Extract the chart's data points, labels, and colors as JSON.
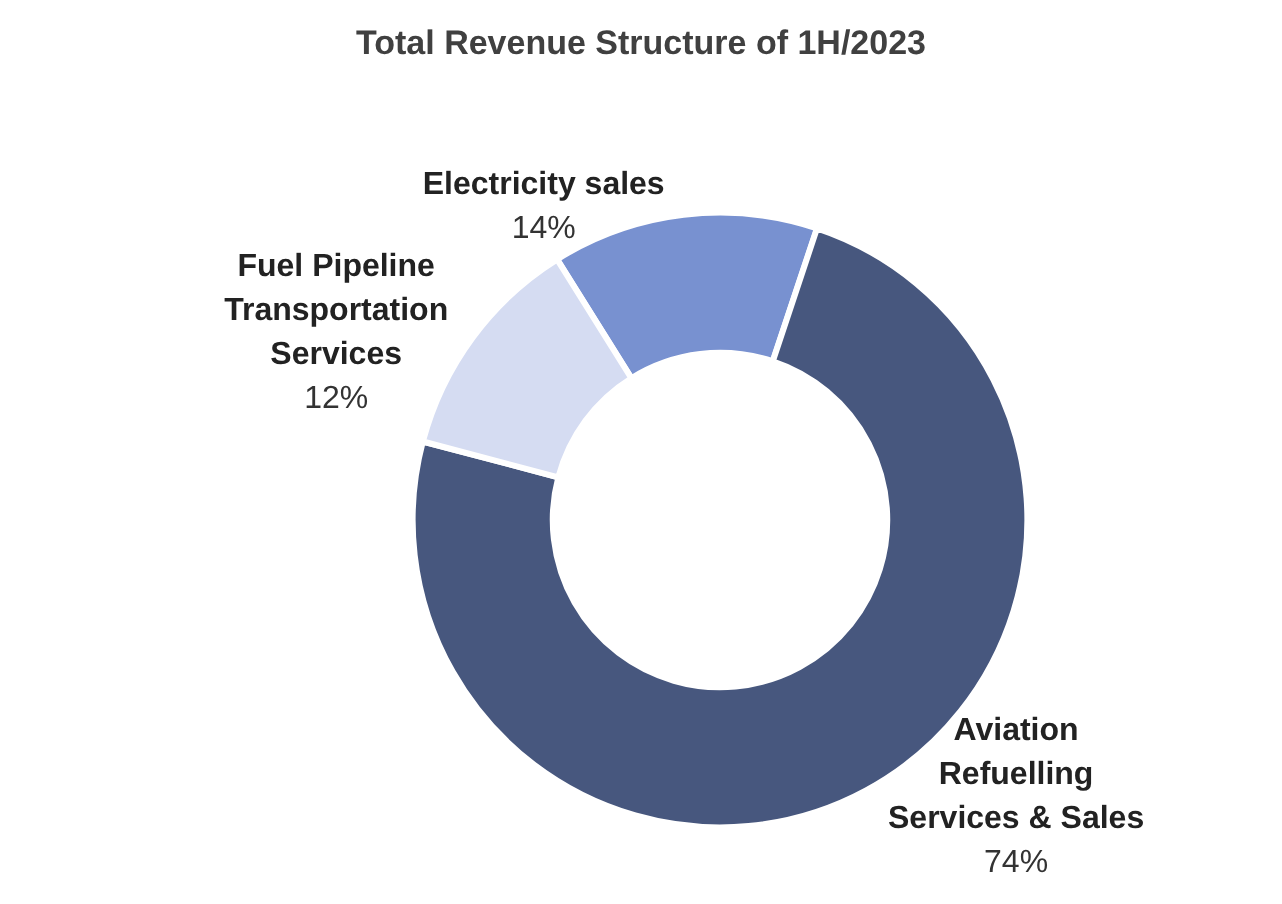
{
  "chart_data": {
    "type": "donut",
    "title": "Total Revenue Structure of 1H/2023",
    "categories": [
      "Electricity sales",
      "Aviation Refuelling Services & Sales",
      "Fuel Pipeline Transportation Services"
    ],
    "values": [
      14,
      74,
      12
    ],
    "colors": [
      "#7891d0",
      "#47577e",
      "#d5dcf2"
    ],
    "value_labels": [
      "14%",
      "74%",
      "12%"
    ],
    "legend": false
  }
}
